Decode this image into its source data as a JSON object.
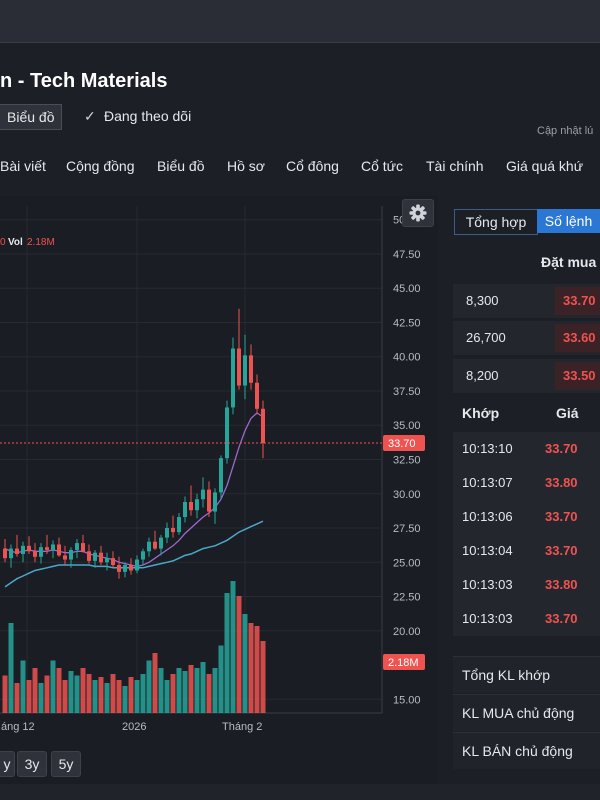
{
  "header": {
    "title": "n - Tech Materials",
    "chart_button": "Biểu đồ",
    "follow_label": "Đang theo dõi",
    "updated_label": "Cập nhật lú"
  },
  "tabs": [
    "Bài viết",
    "Cộng đồng",
    "Biểu đồ",
    "Hồ sơ",
    "Cổ đông",
    "Cổ tức",
    "Tài chính",
    "Giá quá khứ"
  ],
  "range_buttons": [
    "y",
    "3y",
    "5y"
  ],
  "chart_data": {
    "type": "candlestick",
    "legend": {
      "partial": "0",
      "vol_label": "Vol",
      "vol_value": "2.18M"
    },
    "y_ticks": [
      "50.00",
      "47.50",
      "45.00",
      "42.50",
      "40.00",
      "37.50",
      "35.00",
      "32.50",
      "30.00",
      "27.50",
      "25.00",
      "22.50",
      "20.00",
      "15.00"
    ],
    "ylim": [
      14.0,
      51.0
    ],
    "x_ticks": [
      "áng 12",
      "2026",
      "Tháng 2"
    ],
    "last_price": "33.70",
    "last_volume": "2.18M",
    "candles": [
      {
        "o": 26.0,
        "h": 26.7,
        "l": 25.0,
        "c": 25.3
      },
      {
        "o": 25.3,
        "h": 26.3,
        "l": 24.6,
        "c": 26.0
      },
      {
        "o": 26.0,
        "h": 27.0,
        "l": 25.4,
        "c": 25.6
      },
      {
        "o": 25.6,
        "h": 26.5,
        "l": 25.0,
        "c": 26.2
      },
      {
        "o": 26.2,
        "h": 26.9,
        "l": 25.6,
        "c": 25.8
      },
      {
        "o": 25.8,
        "h": 26.4,
        "l": 25.0,
        "c": 25.4
      },
      {
        "o": 25.4,
        "h": 26.4,
        "l": 24.9,
        "c": 26.1
      },
      {
        "o": 26.1,
        "h": 27.0,
        "l": 25.6,
        "c": 25.9
      },
      {
        "o": 25.9,
        "h": 26.6,
        "l": 25.3,
        "c": 26.3
      },
      {
        "o": 26.3,
        "h": 26.8,
        "l": 25.4,
        "c": 25.5
      },
      {
        "o": 25.5,
        "h": 26.2,
        "l": 24.8,
        "c": 25.2
      },
      {
        "o": 25.2,
        "h": 26.1,
        "l": 24.6,
        "c": 25.9
      },
      {
        "o": 25.9,
        "h": 26.7,
        "l": 25.3,
        "c": 26.4
      },
      {
        "o": 26.4,
        "h": 27.0,
        "l": 25.7,
        "c": 25.8
      },
      {
        "o": 25.8,
        "h": 26.3,
        "l": 24.9,
        "c": 25.1
      },
      {
        "o": 25.1,
        "h": 25.9,
        "l": 24.6,
        "c": 25.7
      },
      {
        "o": 25.7,
        "h": 26.2,
        "l": 24.8,
        "c": 25.0
      },
      {
        "o": 25.0,
        "h": 25.7,
        "l": 24.4,
        "c": 25.3
      },
      {
        "o": 25.3,
        "h": 25.8,
        "l": 24.6,
        "c": 24.8
      },
      {
        "o": 24.8,
        "h": 25.4,
        "l": 23.8,
        "c": 24.3
      },
      {
        "o": 24.3,
        "h": 25.0,
        "l": 23.9,
        "c": 24.8
      },
      {
        "o": 24.8,
        "h": 25.3,
        "l": 24.1,
        "c": 24.4
      },
      {
        "o": 24.4,
        "h": 25.5,
        "l": 24.2,
        "c": 25.2
      },
      {
        "o": 25.2,
        "h": 26.0,
        "l": 24.8,
        "c": 25.8
      },
      {
        "o": 25.8,
        "h": 26.8,
        "l": 25.4,
        "c": 26.5
      },
      {
        "o": 26.5,
        "h": 27.3,
        "l": 25.9,
        "c": 26.0
      },
      {
        "o": 26.0,
        "h": 27.0,
        "l": 25.5,
        "c": 26.8
      },
      {
        "o": 26.8,
        "h": 27.9,
        "l": 26.4,
        "c": 27.5
      },
      {
        "o": 27.5,
        "h": 28.4,
        "l": 26.8,
        "c": 27.2
      },
      {
        "o": 27.2,
        "h": 28.6,
        "l": 27.0,
        "c": 28.3
      },
      {
        "o": 28.3,
        "h": 29.8,
        "l": 27.9,
        "c": 29.4
      },
      {
        "o": 29.4,
        "h": 30.6,
        "l": 28.4,
        "c": 28.8
      },
      {
        "o": 28.8,
        "h": 30.0,
        "l": 28.2,
        "c": 29.6
      },
      {
        "o": 29.6,
        "h": 31.2,
        "l": 29.0,
        "c": 30.3
      },
      {
        "o": 30.3,
        "h": 30.9,
        "l": 28.3,
        "c": 28.7
      },
      {
        "o": 28.7,
        "h": 30.4,
        "l": 27.8,
        "c": 30.1
      },
      {
        "o": 30.1,
        "h": 32.8,
        "l": 29.6,
        "c": 32.6
      },
      {
        "o": 32.6,
        "h": 36.8,
        "l": 32.2,
        "c": 36.3
      },
      {
        "o": 36.3,
        "h": 41.4,
        "l": 35.8,
        "c": 40.6
      },
      {
        "o": 40.6,
        "h": 43.5,
        "l": 37.6,
        "c": 37.9
      },
      {
        "o": 37.9,
        "h": 41.6,
        "l": 36.9,
        "c": 40.1
      },
      {
        "o": 40.1,
        "h": 40.9,
        "l": 37.6,
        "c": 38.1
      },
      {
        "o": 38.1,
        "h": 38.7,
        "l": 35.8,
        "c": 36.2
      },
      {
        "o": 36.2,
        "h": 36.8,
        "l": 32.6,
        "c": 33.7
      }
    ],
    "volume_relative": [
      0.25,
      0.6,
      0.2,
      0.35,
      0.22,
      0.3,
      0.2,
      0.25,
      0.35,
      0.3,
      0.22,
      0.28,
      0.25,
      0.3,
      0.26,
      0.22,
      0.24,
      0.2,
      0.26,
      0.22,
      0.18,
      0.24,
      0.22,
      0.26,
      0.35,
      0.4,
      0.3,
      0.22,
      0.26,
      0.3,
      0.28,
      0.32,
      0.3,
      0.34,
      0.26,
      0.3,
      0.45,
      0.8,
      0.88,
      0.78,
      0.66,
      0.6,
      0.58,
      0.48
    ],
    "ma_short": [
      26.0,
      25.8,
      25.7,
      25.8,
      25.9,
      25.8,
      25.8,
      25.8,
      25.9,
      25.8,
      25.7,
      25.7,
      25.8,
      25.8,
      25.6,
      25.5,
      25.4,
      25.3,
      25.2,
      25.0,
      24.9,
      24.8,
      24.7,
      24.8,
      25.0,
      25.3,
      25.6,
      25.9,
      26.2,
      26.6,
      27.1,
      27.5,
      27.9,
      28.3,
      28.6,
      29.0,
      29.6,
      30.6,
      32.0,
      33.4,
      34.6,
      35.5,
      35.9,
      35.6
    ],
    "ma_long": [
      23.2,
      23.5,
      23.8,
      24.0,
      24.2,
      24.4,
      24.5,
      24.6,
      24.7,
      24.8,
      24.8,
      24.8,
      24.8,
      24.8,
      24.8,
      24.7,
      24.7,
      24.7,
      24.6,
      24.6,
      24.6,
      24.6,
      24.6,
      24.6,
      24.7,
      24.8,
      24.9,
      25.0,
      25.1,
      25.3,
      25.5,
      25.6,
      25.8,
      26.0,
      26.1,
      26.2,
      26.4,
      26.6,
      26.9,
      27.2,
      27.4,
      27.6,
      27.8,
      28.0
    ]
  },
  "order_panel": {
    "tab_summary": "Tổng hợp",
    "tab_orders": "Số lệnh",
    "buy_header": "Đặt mua",
    "book_rows": [
      {
        "volume": "8,300",
        "price": "33.70"
      },
      {
        "volume": "26,700",
        "price": "33.60"
      },
      {
        "volume": "8,200",
        "price": "33.50"
      }
    ],
    "match_header": "Khớp",
    "price_header": "Giá",
    "matches": [
      {
        "time": "10:13:10",
        "price": "33.70"
      },
      {
        "time": "10:13:07",
        "price": "33.80"
      },
      {
        "time": "10:13:06",
        "price": "33.70"
      },
      {
        "time": "10:13:04",
        "price": "33.70"
      },
      {
        "time": "10:13:03",
        "price": "33.80"
      },
      {
        "time": "10:13:03",
        "price": "33.70"
      }
    ],
    "summary_rows": [
      "Tổng KL khớp",
      "KL MUA chủ động",
      "KL BÁN chủ động"
    ]
  },
  "colors": {
    "up": "#26a69a",
    "down": "#ef5350",
    "accent": "#2a77d4",
    "ma_short": "#9c6ad0",
    "ma_long": "#4aa8c8"
  }
}
